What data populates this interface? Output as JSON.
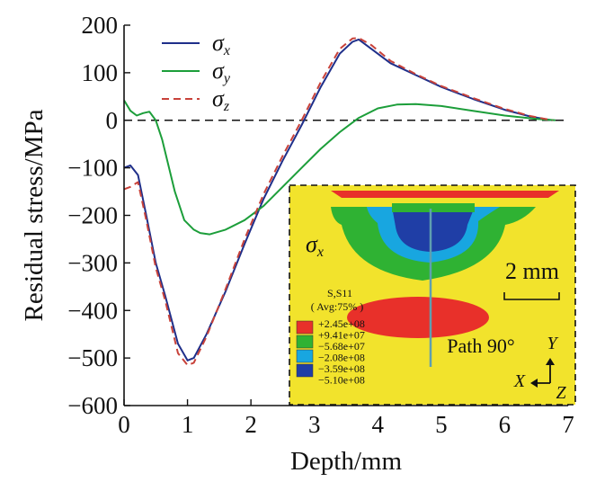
{
  "chart_data": {
    "type": "line",
    "xlabel": "Depth/mm",
    "ylabel": "Residual stress/MPa",
    "xlim": [
      0,
      7
    ],
    "ylim": [
      -600,
      200
    ],
    "xticks": [
      "0",
      "1",
      "2",
      "3",
      "4",
      "5",
      "6",
      "7"
    ],
    "yticks": [
      "200",
      "100",
      "0",
      "−100",
      "−200",
      "−300",
      "−400",
      "−500",
      "−600"
    ],
    "zero_line": "dashed",
    "legend_position": "top-left",
    "series": [
      {
        "name": "σx",
        "symbol": "σ",
        "subscript": "x",
        "color": "#1f2f8a",
        "dash": "solid",
        "x": [
          0,
          0.1,
          0.22,
          0.35,
          0.5,
          0.65,
          0.85,
          1.0,
          1.1,
          1.3,
          1.6,
          1.9,
          2.2,
          2.5,
          2.8,
          3.1,
          3.4,
          3.6,
          3.7,
          3.9,
          4.2,
          4.6,
          5.0,
          5.5,
          6.0,
          6.4,
          6.75
        ],
        "y": [
          -100,
          -95,
          -115,
          -200,
          -300,
          -370,
          -470,
          -505,
          -500,
          -450,
          -360,
          -260,
          -165,
          -85,
          -10,
          70,
          140,
          165,
          170,
          150,
          120,
          95,
          70,
          45,
          22,
          8,
          0
        ]
      },
      {
        "name": "σy",
        "symbol": "σ",
        "subscript": "y",
        "color": "#1c9e3a",
        "dash": "solid",
        "x": [
          0,
          0.1,
          0.2,
          0.3,
          0.4,
          0.5,
          0.6,
          0.8,
          0.95,
          1.1,
          1.2,
          1.35,
          1.6,
          1.9,
          2.2,
          2.5,
          2.8,
          3.1,
          3.4,
          3.7,
          4.0,
          4.3,
          4.6,
          5.0,
          5.5,
          6.0,
          6.5,
          6.8
        ],
        "y": [
          42,
          20,
          10,
          15,
          18,
          0,
          -40,
          -150,
          -210,
          -230,
          -237,
          -240,
          -230,
          -210,
          -180,
          -140,
          -100,
          -60,
          -25,
          5,
          25,
          33,
          34,
          30,
          20,
          10,
          3,
          0
        ]
      },
      {
        "name": "σz",
        "symbol": "σ",
        "subscript": "z",
        "color": "#c8423a",
        "dash": "dashed",
        "x": [
          0,
          0.1,
          0.22,
          0.35,
          0.5,
          0.65,
          0.85,
          1.0,
          1.1,
          1.3,
          1.6,
          1.9,
          2.2,
          2.5,
          2.8,
          3.1,
          3.4,
          3.6,
          3.7,
          3.9,
          4.2,
          4.6,
          5.0,
          5.5,
          6.0,
          6.4,
          6.75
        ],
        "y": [
          -145,
          -140,
          -130,
          -210,
          -310,
          -380,
          -490,
          -515,
          -510,
          -455,
          -355,
          -250,
          -155,
          -75,
          0,
          80,
          150,
          172,
          173,
          158,
          125,
          97,
          72,
          47,
          24,
          9,
          0
        ]
      }
    ],
    "inset": {
      "label_symbol": "σ",
      "label_subscript": "x",
      "scale_bar": "2 mm",
      "legend_title": "S,S11",
      "legend_subtitle": "( Avg:75% )",
      "contour_levels": [
        {
          "label": "+2.45e+08",
          "color": "#e8302a"
        },
        {
          "label": "+9.41e+07",
          "color": "#f2e32c"
        },
        {
          "label": "−5.68e+07",
          "color": "#2fb233"
        },
        {
          "label": "−2.08e+08",
          "color": "#18a6e0"
        },
        {
          "label": "−3.59e+08",
          "color": "#1f3ea6"
        },
        {
          "label": "−5.10e+08",
          "color": ""
        }
      ],
      "path_label": "Path 90°",
      "axis_y": "Y",
      "axis_x": "X",
      "axis_z": "Z"
    }
  }
}
